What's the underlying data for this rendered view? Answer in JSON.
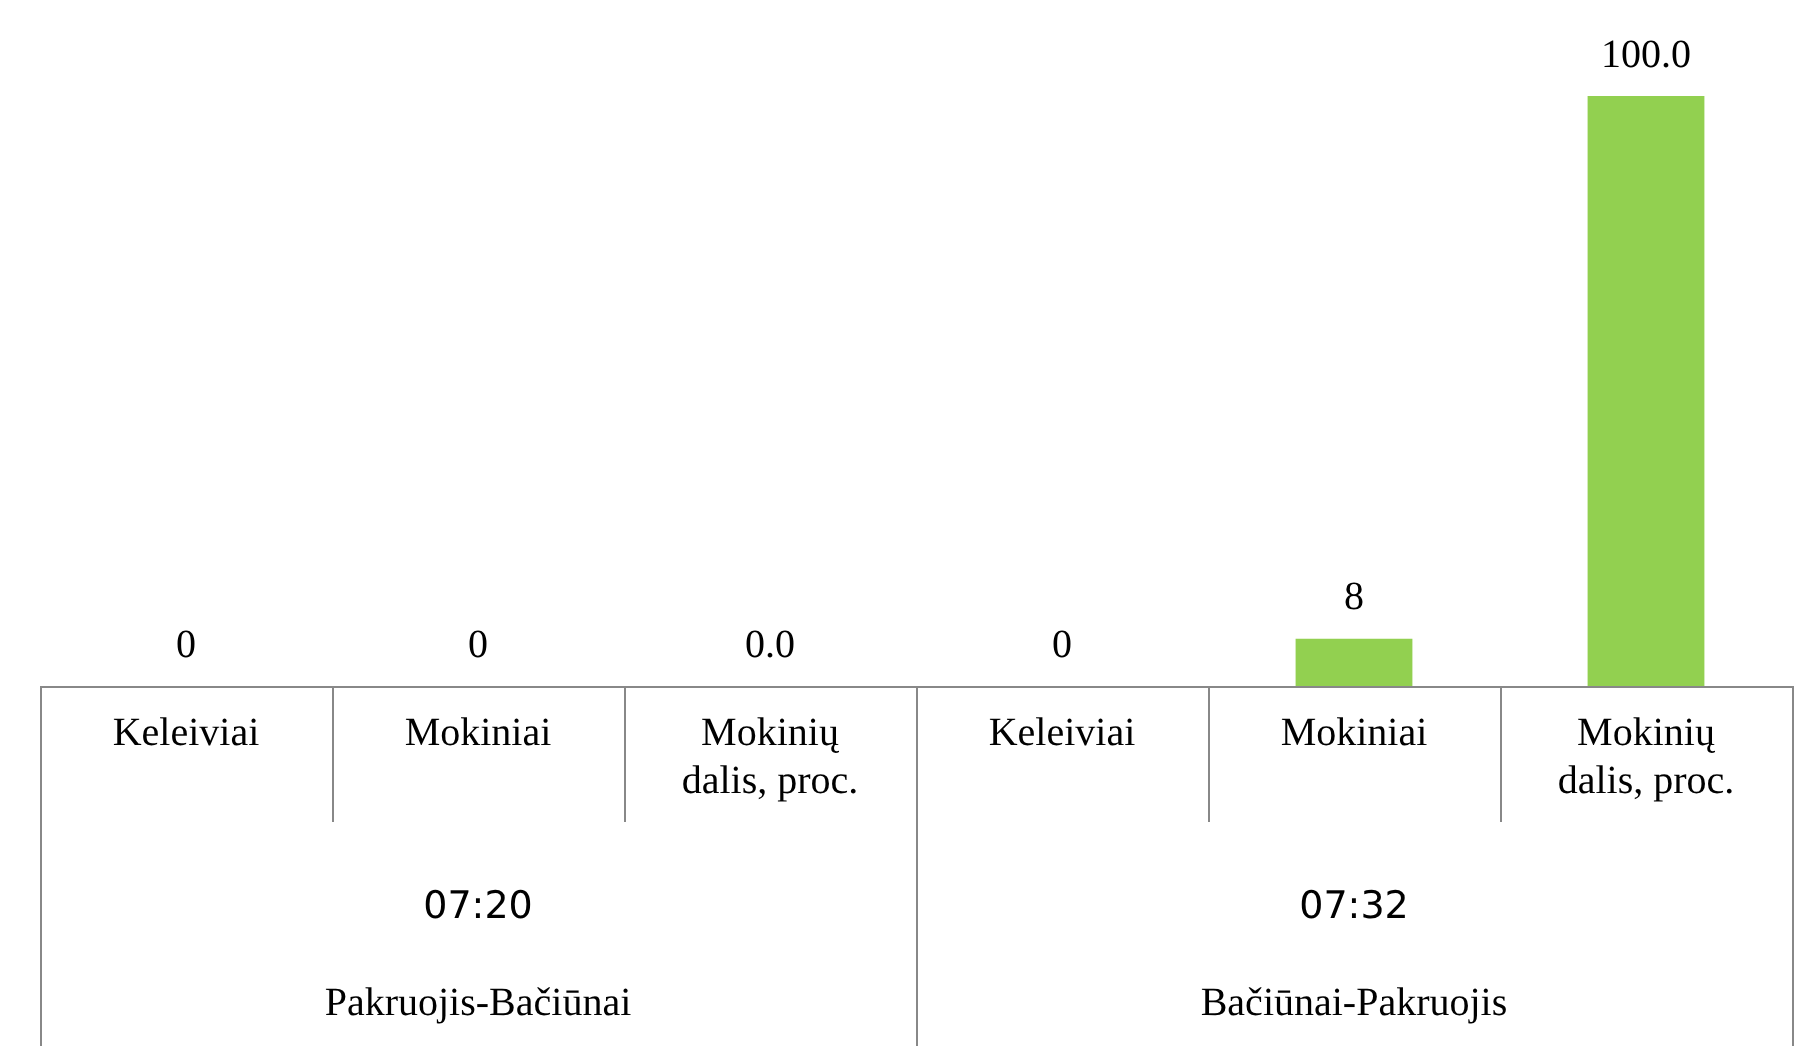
{
  "chart_data": {
    "type": "bar",
    "categories": [
      "Keleiviai",
      "Mokiniai",
      "Mokinių dalis, proc.",
      "Keleiviai",
      "Mokiniai",
      "Mokinių dalis, proc."
    ],
    "values": [
      0,
      0,
      0.0,
      0,
      8,
      100.0
    ],
    "value_labels": [
      "0",
      "0",
      "0.0",
      "0",
      "8",
      "100.0"
    ],
    "color": "#92d050",
    "ylim": [
      0,
      100
    ],
    "annotations": [
      "07:20",
      "07:32",
      "Pakruojis-Bačiūnai",
      "Bačiūnai-Pakruojis"
    ],
    "grid": false,
    "legend": false
  }
}
